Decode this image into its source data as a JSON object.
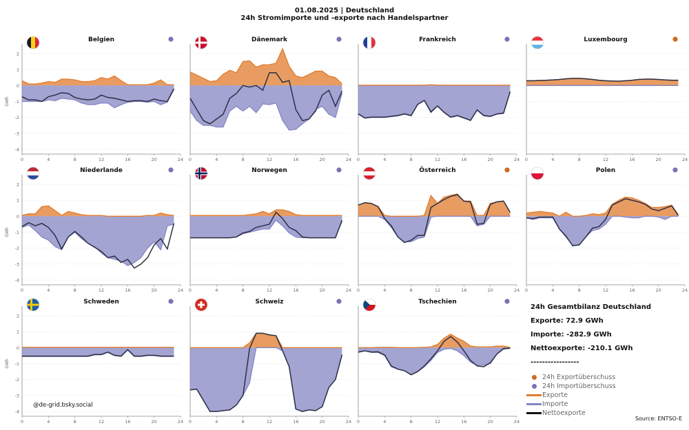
{
  "header": {
    "title": "01.08.2025 | Deutschland",
    "subtitle": "24h Stromimporte und -exporte nach Handelspartner"
  },
  "colors": {
    "export": "#E07B2C",
    "import": "#8585C4",
    "net": "#2B2F44",
    "dot_export": "#D2691E",
    "dot_import": "#7B72B8"
  },
  "chart_data": [
    {
      "type": "area",
      "title": "Belgien",
      "flag": "be",
      "balance": "import",
      "ylabel": "GWh",
      "xlim": [
        0,
        24
      ],
      "ylim": [
        -4.3,
        2.6
      ],
      "xticks": [
        0,
        4,
        8,
        12,
        16,
        20,
        24
      ],
      "yticks": [
        -4,
        -3,
        -2,
        -1,
        0,
        1,
        2
      ],
      "exports": [
        0.3,
        0.1,
        0.1,
        0.15,
        0.25,
        0.2,
        0.4,
        0.4,
        0.35,
        0.25,
        0.25,
        0.3,
        0.5,
        0.4,
        0.6,
        0.3,
        0.05,
        0.05,
        0.05,
        0.05,
        0.15,
        0.35,
        0.05,
        0.05
      ],
      "imports": [
        -1.0,
        -1.0,
        -1.0,
        -1.0,
        -0.9,
        -0.95,
        -0.8,
        -0.85,
        -0.9,
        -1.1,
        -1.2,
        -1.2,
        -1.1,
        -1.1,
        -1.4,
        -1.2,
        -1.05,
        -1.0,
        -1.0,
        -1.05,
        -1.0,
        -1.2,
        -1.05,
        -0.25
      ],
      "net": [
        -0.7,
        -0.9,
        -0.9,
        -1.0,
        -0.7,
        -0.6,
        -0.45,
        -0.5,
        -0.75,
        -0.85,
        -0.9,
        -0.85,
        -0.6,
        -0.75,
        -0.8,
        -0.9,
        -1.0,
        -0.95,
        -0.95,
        -1.0,
        -0.85,
        -0.95,
        -1.0,
        -0.2
      ]
    },
    {
      "type": "area",
      "title": "Dänemark",
      "flag": "dk",
      "balance": "import",
      "ylabel": "",
      "xlim": [
        0,
        24
      ],
      "ylim": [
        -4.3,
        2.6
      ],
      "xticks": [
        0,
        4,
        8,
        12,
        16,
        20,
        24
      ],
      "yticks": [
        -4,
        -3,
        -2,
        -1,
        0,
        1,
        2
      ],
      "exports": [
        0.85,
        0.65,
        0.45,
        0.25,
        0.3,
        0.7,
        0.95,
        0.8,
        1.5,
        1.55,
        1.15,
        1.3,
        1.3,
        1.4,
        2.3,
        1.2,
        0.6,
        0.5,
        0.7,
        0.9,
        0.9,
        0.6,
        0.5,
        0.1
      ],
      "imports": [
        -1.6,
        -2.2,
        -2.5,
        -2.5,
        -2.6,
        -2.6,
        -1.6,
        -1.3,
        -1.6,
        -1.3,
        -1.7,
        -1.15,
        -1.2,
        -1.1,
        -2.2,
        -2.8,
        -2.75,
        -2.4,
        -2.1,
        -1.5,
        -1.3,
        -1.8,
        -2.0,
        -0.5
      ],
      "net": [
        -0.8,
        -1.5,
        -2.2,
        -2.4,
        -2.1,
        -1.8,
        -0.8,
        -0.5,
        0.0,
        -0.1,
        0.0,
        -0.3,
        0.8,
        0.8,
        0.2,
        0.3,
        -1.5,
        -2.2,
        -2.1,
        -1.6,
        -0.6,
        -0.3,
        -1.3,
        -0.35
      ]
    },
    {
      "type": "area",
      "title": "Frankreich",
      "flag": "fr",
      "balance": "import",
      "ylabel": "",
      "xlim": [
        0,
        24
      ],
      "ylim": [
        -4.3,
        2.6
      ],
      "xticks": [
        0,
        4,
        8,
        12,
        16,
        20,
        24
      ],
      "yticks": [
        -4,
        -3,
        -2,
        -1,
        0,
        1,
        2
      ],
      "exports": [
        0.02,
        0.02,
        0.02,
        0.02,
        0.02,
        0.02,
        0.02,
        0.02,
        0.02,
        0.02,
        0.02,
        0.05,
        0.02,
        0.02,
        0.02,
        0.02,
        0.02,
        0.02,
        0.02,
        0.02,
        0.02,
        0.02,
        0.02,
        0.02
      ],
      "imports": [
        -1.8,
        -2.05,
        -2.0,
        -2.0,
        -2.0,
        -1.95,
        -1.9,
        -1.8,
        -1.9,
        -1.2,
        -0.95,
        -1.7,
        -1.3,
        -1.7,
        -2.0,
        -1.9,
        -2.05,
        -2.2,
        -1.55,
        -1.9,
        -1.95,
        -1.8,
        -1.75,
        -0.4
      ],
      "net": [
        -1.78,
        -2.03,
        -1.98,
        -1.98,
        -1.98,
        -1.93,
        -1.88,
        -1.78,
        -1.88,
        -1.18,
        -0.93,
        -1.65,
        -1.28,
        -1.68,
        -1.98,
        -1.88,
        -2.03,
        -2.18,
        -1.53,
        -1.88,
        -1.93,
        -1.78,
        -1.73,
        -0.38
      ]
    },
    {
      "type": "area",
      "title": "Luxembourg",
      "flag": "lu",
      "balance": "export",
      "ylabel": "",
      "xlim": [
        0,
        24
      ],
      "ylim": [
        -4.3,
        2.6
      ],
      "xticks": [
        0,
        4,
        8,
        12,
        16,
        20,
        24
      ],
      "yticks": [
        -4,
        -3,
        -2,
        -1,
        0,
        1,
        2
      ],
      "exports": [
        0.3,
        0.3,
        0.32,
        0.33,
        0.35,
        0.38,
        0.42,
        0.45,
        0.45,
        0.42,
        0.38,
        0.33,
        0.3,
        0.28,
        0.27,
        0.3,
        0.33,
        0.38,
        0.4,
        0.4,
        0.38,
        0.35,
        0.33,
        0.33
      ],
      "imports": [
        0,
        0,
        0,
        0,
        0,
        0,
        0,
        0,
        0,
        0,
        0,
        0,
        0,
        0,
        0,
        0,
        0,
        0,
        0,
        0,
        0,
        0,
        0,
        0
      ],
      "net": [
        0.3,
        0.3,
        0.32,
        0.33,
        0.35,
        0.38,
        0.42,
        0.45,
        0.45,
        0.42,
        0.38,
        0.33,
        0.3,
        0.28,
        0.27,
        0.3,
        0.33,
        0.38,
        0.4,
        0.4,
        0.38,
        0.35,
        0.33,
        0.33
      ]
    },
    {
      "type": "area",
      "title": "Niederlande",
      "flag": "nl",
      "balance": "import",
      "ylabel": "GWh",
      "xlim": [
        0,
        24
      ],
      "ylim": [
        -4.3,
        2.6
      ],
      "xticks": [
        0,
        4,
        8,
        12,
        16,
        20,
        24
      ],
      "yticks": [
        -4,
        -3,
        -2,
        -1,
        0,
        1,
        2
      ],
      "exports": [
        0.05,
        0.15,
        0.15,
        0.6,
        0.65,
        0.35,
        0.05,
        0.3,
        0.2,
        0.1,
        0.05,
        0.05,
        0.05,
        0.0,
        0.0,
        0.0,
        0.0,
        0.0,
        0.0,
        0.05,
        0.05,
        0.2,
        0.1,
        0.05
      ],
      "imports": [
        -0.7,
        -0.55,
        -0.9,
        -1.3,
        -1.5,
        -1.9,
        -2.1,
        -1.3,
        -1.0,
        -1.4,
        -1.7,
        -1.9,
        -2.3,
        -2.6,
        -2.7,
        -2.8,
        -3.1,
        -2.9,
        -2.6,
        -2.0,
        -1.6,
        -2.1,
        -0.6,
        -0.5
      ],
      "net": [
        -0.65,
        -0.4,
        -0.6,
        -0.45,
        -0.7,
        -1.2,
        -2.05,
        -1.3,
        -0.95,
        -1.3,
        -1.7,
        -1.95,
        -2.2,
        -2.6,
        -2.5,
        -2.9,
        -2.7,
        -3.25,
        -3.0,
        -2.6,
        -1.8,
        -1.4,
        -2.05,
        -0.45
      ]
    },
    {
      "type": "area",
      "title": "Norwegen",
      "flag": "no",
      "balance": "import",
      "ylabel": "",
      "xlim": [
        0,
        24
      ],
      "ylim": [
        -4.3,
        2.6
      ],
      "xticks": [
        0,
        4,
        8,
        12,
        16,
        20,
        24
      ],
      "yticks": [
        -4,
        -3,
        -2,
        -1,
        0,
        1,
        2
      ],
      "exports": [
        0.05,
        0.05,
        0.05,
        0.05,
        0.05,
        0.05,
        0.05,
        0.05,
        0.05,
        0.1,
        0.15,
        0.3,
        0.15,
        0.4,
        0.4,
        0.3,
        0.1,
        0.05,
        0.05,
        0.05,
        0.05,
        0.05,
        0.05,
        0.05
      ],
      "imports": [
        -1.35,
        -1.35,
        -1.35,
        -1.35,
        -1.35,
        -1.35,
        -1.35,
        -1.3,
        -1.1,
        -1.0,
        -0.9,
        -0.8,
        -0.8,
        -0.25,
        -0.6,
        -1.05,
        -1.3,
        -1.35,
        -1.35,
        -1.35,
        -1.35,
        -1.35,
        -1.35,
        -0.3
      ],
      "net": [
        -1.35,
        -1.35,
        -1.35,
        -1.35,
        -1.35,
        -1.35,
        -1.35,
        -1.3,
        -1.05,
        -0.95,
        -0.7,
        -0.6,
        -0.5,
        0.25,
        -0.15,
        -0.7,
        -0.9,
        -1.3,
        -1.35,
        -1.35,
        -1.35,
        -1.35,
        -1.35,
        -0.25
      ]
    },
    {
      "type": "area",
      "title": "Österreich",
      "flag": "at",
      "balance": "export",
      "ylabel": "",
      "xlim": [
        0,
        24
      ],
      "ylim": [
        -4.3,
        2.6
      ],
      "xticks": [
        0,
        4,
        8,
        12,
        16,
        20,
        24
      ],
      "yticks": [
        -4,
        -3,
        -2,
        -1,
        0,
        1,
        2
      ],
      "exports": [
        0.7,
        0.85,
        0.8,
        0.6,
        0.05,
        0.0,
        0.0,
        0.0,
        0.0,
        0.0,
        0.05,
        1.3,
        0.8,
        1.2,
        1.3,
        1.4,
        0.95,
        0.95,
        0.05,
        0.05,
        0.8,
        0.9,
        0.95,
        0.25
      ],
      "imports": [
        0,
        0,
        0,
        0,
        -0.2,
        -0.7,
        -1.3,
        -1.6,
        -1.6,
        -1.4,
        -1.3,
        -0.05,
        0,
        0,
        0,
        0,
        0,
        0,
        -0.6,
        -0.5,
        0,
        0,
        0,
        0
      ],
      "net": [
        0.7,
        0.85,
        0.8,
        0.6,
        -0.15,
        -0.6,
        -1.3,
        -1.65,
        -1.5,
        -1.2,
        -1.2,
        0.55,
        0.8,
        1.05,
        1.25,
        1.35,
        0.95,
        0.9,
        -0.5,
        -0.45,
        0.75,
        0.9,
        0.95,
        0.25
      ]
    },
    {
      "type": "area",
      "title": "Polen",
      "flag": "pl",
      "balance": "import",
      "ylabel": "",
      "xlim": [
        0,
        24
      ],
      "ylim": [
        -4.3,
        2.6
      ],
      "xticks": [
        0,
        4,
        8,
        12,
        16,
        20,
        24
      ],
      "yticks": [
        -4,
        -3,
        -2,
        -1,
        0,
        1,
        2
      ],
      "exports": [
        0.2,
        0.25,
        0.3,
        0.25,
        0.2,
        0.0,
        0.25,
        0.0,
        0.0,
        0.05,
        0.15,
        0.1,
        0.2,
        0.75,
        1.0,
        1.2,
        1.15,
        1.0,
        0.8,
        0.55,
        0.55,
        0.6,
        0.7,
        0.1
      ],
      "imports": [
        -0.1,
        -0.2,
        -0.1,
        -0.1,
        -0.1,
        -0.8,
        -1.3,
        -1.8,
        -1.8,
        -1.3,
        -0.9,
        -0.8,
        -0.5,
        0.0,
        0.0,
        -0.05,
        -0.1,
        -0.1,
        0.0,
        0.0,
        -0.05,
        -0.2,
        0.0,
        0.0
      ],
      "net": [
        -0.1,
        -0.15,
        -0.05,
        -0.05,
        -0.05,
        -0.8,
        -1.25,
        -1.85,
        -1.8,
        -1.3,
        -0.75,
        -0.65,
        -0.2,
        0.7,
        0.9,
        1.1,
        1.0,
        0.9,
        0.75,
        0.45,
        0.35,
        0.5,
        0.65,
        0.05
      ]
    },
    {
      "type": "area",
      "title": "Schweden",
      "flag": "se",
      "balance": "import",
      "ylabel": "GWh",
      "xlim": [
        0,
        24
      ],
      "ylim": [
        -4.3,
        2.6
      ],
      "xticks": [
        0,
        4,
        8,
        12,
        16,
        20,
        24
      ],
      "yticks": [
        -4,
        -3,
        -2,
        -1,
        0,
        1,
        2
      ],
      "exports": [
        0.02,
        0.02,
        0.02,
        0.02,
        0.02,
        0.02,
        0.02,
        0.02,
        0.02,
        0.02,
        0.02,
        0.02,
        0.02,
        0.02,
        0.02,
        0.02,
        0.02,
        0.02,
        0.02,
        0.02,
        0.02,
        0.02,
        0.02,
        0.02
      ],
      "imports": [
        -0.55,
        -0.55,
        -0.55,
        -0.55,
        -0.55,
        -0.55,
        -0.55,
        -0.55,
        -0.55,
        -0.55,
        -0.55,
        -0.45,
        -0.45,
        -0.3,
        -0.5,
        -0.55,
        -0.15,
        -0.55,
        -0.55,
        -0.5,
        -0.5,
        -0.55,
        -0.55,
        -0.55
      ],
      "net": [
        -0.53,
        -0.53,
        -0.53,
        -0.53,
        -0.53,
        -0.53,
        -0.53,
        -0.53,
        -0.53,
        -0.53,
        -0.53,
        -0.43,
        -0.43,
        -0.28,
        -0.48,
        -0.53,
        -0.13,
        -0.53,
        -0.53,
        -0.48,
        -0.48,
        -0.53,
        -0.53,
        -0.53
      ]
    },
    {
      "type": "area",
      "title": "Schweiz",
      "flag": "ch",
      "balance": "import",
      "ylabel": "",
      "xlim": [
        0,
        24
      ],
      "ylim": [
        -4.3,
        2.6
      ],
      "xticks": [
        0,
        4,
        8,
        12,
        16,
        20,
        24
      ],
      "yticks": [
        -4,
        -3,
        -2,
        -1,
        0,
        1,
        2
      ],
      "exports": [
        0,
        0,
        0,
        0,
        0,
        0,
        0,
        0,
        0,
        0.3,
        0.9,
        0.9,
        0.8,
        0.75,
        0,
        0,
        0,
        0,
        0,
        0,
        0,
        0,
        0,
        0
      ],
      "imports": [
        -2.65,
        -2.6,
        -3.3,
        -4.0,
        -4.0,
        -3.95,
        -3.9,
        -3.6,
        -3.0,
        -2.2,
        0,
        0,
        0,
        0,
        -0.2,
        -1.2,
        -3.85,
        -4.0,
        -3.9,
        -3.95,
        -3.7,
        -2.5,
        -2.0,
        -0.45
      ],
      "net": [
        -2.65,
        -2.6,
        -3.3,
        -4.0,
        -4.0,
        -3.95,
        -3.9,
        -3.6,
        -3.0,
        -0.05,
        0.9,
        0.9,
        0.8,
        0.75,
        -0.2,
        -1.2,
        -3.85,
        -4.0,
        -3.9,
        -3.95,
        -3.7,
        -2.5,
        -2.0,
        -0.45
      ]
    },
    {
      "type": "area",
      "title": "Tschechien",
      "flag": "cz",
      "balance": "import",
      "ylabel": "",
      "xlim": [
        0,
        24
      ],
      "ylim": [
        -4.3,
        2.6
      ],
      "xticks": [
        0,
        4,
        8,
        12,
        16,
        20,
        24
      ],
      "yticks": [
        -4,
        -3,
        -2,
        -1,
        0,
        1,
        2
      ],
      "exports": [
        0,
        0,
        0,
        0.02,
        0.02,
        0.02,
        0,
        0,
        0,
        0,
        0.02,
        0.05,
        0.2,
        0.6,
        0.85,
        0.6,
        0.4,
        0.1,
        0.05,
        0.05,
        0.05,
        0.1,
        0.1,
        0.02
      ],
      "imports": [
        -0.3,
        -0.2,
        -0.3,
        -0.3,
        -0.5,
        -1.2,
        -1.35,
        -1.45,
        -1.7,
        -1.5,
        -1.2,
        -0.8,
        -0.3,
        -0.1,
        -0.05,
        -0.2,
        -0.5,
        -0.9,
        -1.1,
        -1.1,
        -1.0,
        -0.4,
        -0.1,
        -0.05
      ],
      "net": [
        -0.28,
        -0.2,
        -0.28,
        -0.26,
        -0.46,
        -1.15,
        -1.35,
        -1.45,
        -1.7,
        -1.5,
        -1.15,
        -0.7,
        -0.2,
        0.4,
        0.7,
        0.35,
        -0.2,
        -0.8,
        -1.15,
        -1.2,
        -0.95,
        -0.4,
        -0.05,
        -0.03
      ]
    }
  ],
  "summary": {
    "heading": "24h Gesamtbilanz Deutschland",
    "exports": "Exporte: 72.9 GWh",
    "imports": "Importe: -282.9 GWh",
    "net": "Nettoexporte: -210.1 GWh",
    "divider": "-----------------"
  },
  "legend": {
    "export_surplus": "24h Exportüberschuss",
    "import_surplus": "24h Importüberschuss",
    "exports": "Exporte",
    "imports": "Importe",
    "net": "Nettoexporte"
  },
  "source": "Source: ENTSO-E",
  "handle": "@de-grid.bsky.social"
}
